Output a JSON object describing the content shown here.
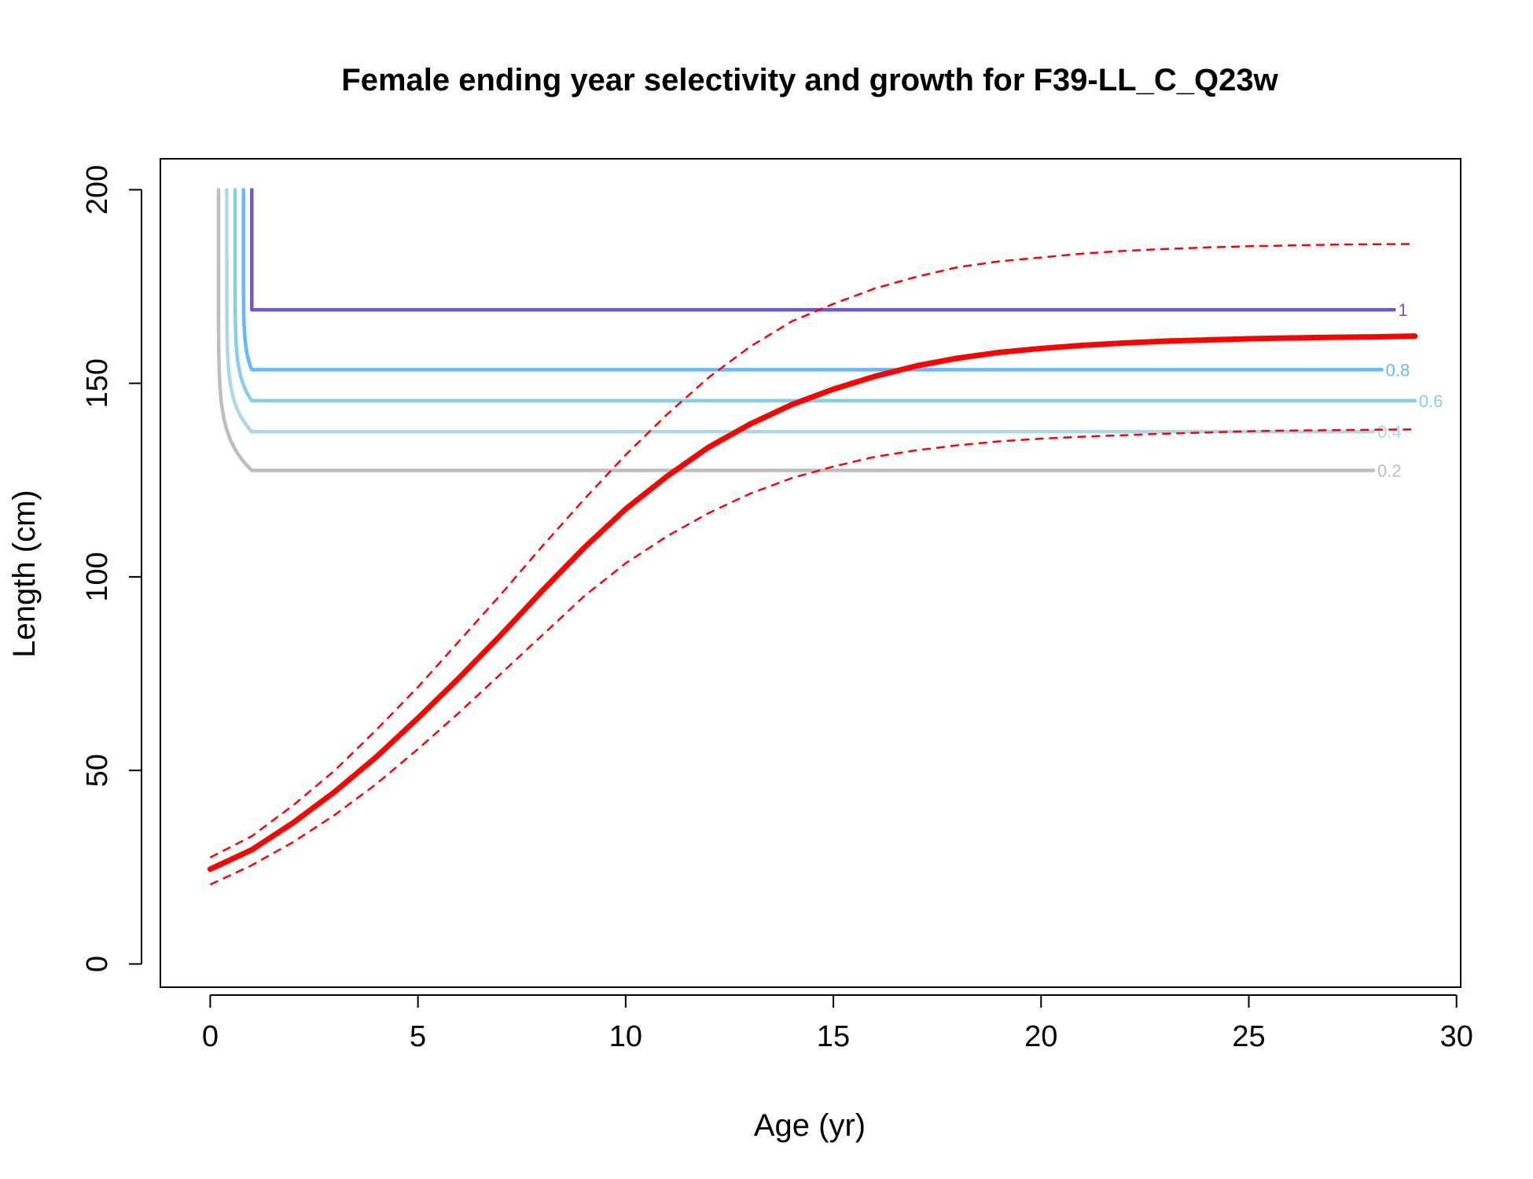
{
  "chart_data": {
    "type": "line",
    "title": "Female ending year selectivity and growth for F39-LL_C_Q23w",
    "xlabel": "Age (yr)",
    "ylabel": "Length (cm)",
    "xlim": [
      -1.2,
      30.1
    ],
    "ylim": [
      -6,
      208
    ],
    "xticks": [
      0,
      5,
      10,
      15,
      20,
      25,
      30
    ],
    "yticks": [
      0,
      50,
      100,
      150,
      200
    ],
    "xtick_labels": [
      "0",
      "5",
      "10",
      "15",
      "20",
      "25",
      "30"
    ],
    "ytick_labels": [
      "0",
      "50",
      "100",
      "150",
      "200"
    ],
    "grid": false,
    "legend": "none",
    "growth": {
      "color": "#ff0000",
      "x": [
        0,
        1,
        2,
        3,
        4,
        5,
        6,
        7,
        8,
        9,
        10,
        11,
        12,
        13,
        14,
        15,
        16,
        17,
        18,
        19,
        20,
        21,
        22,
        23,
        24,
        25,
        26,
        27,
        28,
        29
      ],
      "mean": [
        24.5,
        29.5,
        36.5,
        44.5,
        53.5,
        63.5,
        74,
        85,
        96.5,
        107.5,
        117.5,
        126,
        133.5,
        139.5,
        144.5,
        148.5,
        151.8,
        154.5,
        156.5,
        158,
        159,
        159.8,
        160.4,
        160.9,
        161.2,
        161.5,
        161.7,
        161.9,
        162,
        162.2
      ],
      "upper": [
        27.5,
        33,
        41,
        50,
        60.5,
        71.5,
        83.5,
        95.5,
        108,
        120,
        131.5,
        142,
        151.5,
        159.5,
        166,
        170.5,
        174.5,
        177.5,
        180,
        181.5,
        182.5,
        183.5,
        184.2,
        184.7,
        185.1,
        185.4,
        185.6,
        185.8,
        185.9,
        186
      ],
      "lower": [
        20.5,
        25.5,
        31.5,
        38.5,
        46.5,
        55.5,
        65,
        75,
        85,
        95,
        103.5,
        110.5,
        116.5,
        121.5,
        125.5,
        128.5,
        131,
        132.7,
        134,
        135,
        135.7,
        136.2,
        136.6,
        137,
        137.3,
        137.6,
        137.8,
        137.9,
        138,
        138.1
      ]
    },
    "selectivity": [
      {
        "name": "0.2",
        "color": "#bebebe",
        "x_start": 0.2,
        "x_corner": 1.0,
        "x_end": 28.0,
        "level": 127.5
      },
      {
        "name": "0.4",
        "color": "#add8e6",
        "x_start": 0.4,
        "x_corner": 1.0,
        "x_end": 28.0,
        "level": 137.5
      },
      {
        "name": "0.6",
        "color": "#87ceeb",
        "x_start": 0.6,
        "x_corner": 1.0,
        "x_end": 29.0,
        "level": 145.5
      },
      {
        "name": "0.8",
        "color": "#63b8ff",
        "x_start": 0.8,
        "x_corner": 1.0,
        "x_end": 28.2,
        "level": 153.5
      },
      {
        "name": "1",
        "color": "#6a5acd",
        "x_start": 1.0,
        "x_corner": 1.0,
        "x_end": 28.5,
        "level": 169
      }
    ],
    "selectivity_top": 200
  }
}
